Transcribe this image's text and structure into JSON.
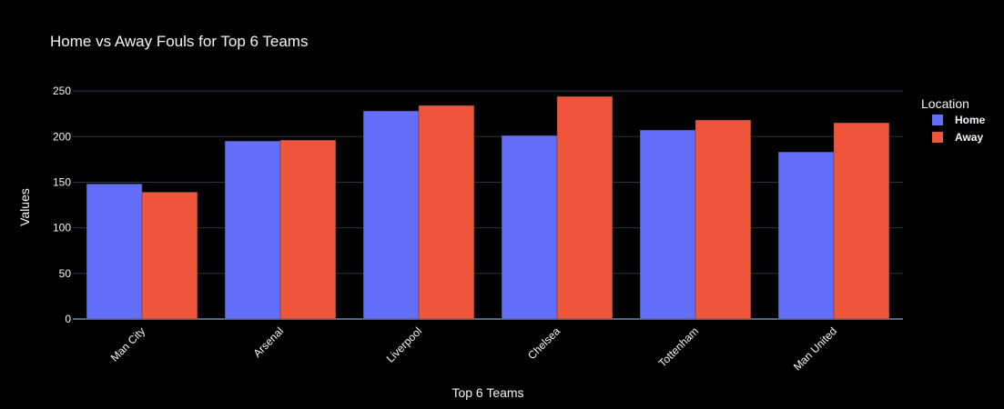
{
  "chart_data": {
    "type": "bar",
    "title": "Home vs Away Fouls for Top 6 Teams",
    "xlabel": "Top 6 Teams",
    "ylabel": "Values",
    "categories": [
      "Man City",
      "Arsenal",
      "Liverpool",
      "Chelsea",
      "Tottenham",
      "Man United"
    ],
    "series": [
      {
        "name": "Home",
        "values": [
          148,
          195,
          228,
          201,
          207,
          183
        ],
        "color": "#636efa"
      },
      {
        "name": "Away",
        "values": [
          139,
          196,
          234,
          244,
          218,
          215
        ],
        "color": "#ef553b"
      }
    ],
    "ylim": [
      0,
      270
    ],
    "yticks": [
      0,
      50,
      100,
      150,
      200,
      250
    ],
    "grid": true,
    "legend": {
      "title": "Location",
      "placement": "right"
    }
  },
  "colors": {
    "background": "#000000",
    "grid": "#283442",
    "text": "#f2f5fa"
  }
}
